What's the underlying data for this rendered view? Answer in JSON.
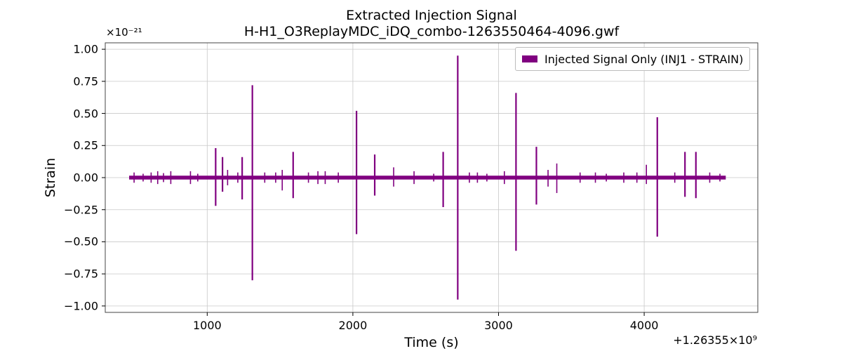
{
  "chart_data": {
    "type": "line",
    "title": "Extracted Injection Signal",
    "subtitle": "H-H1_O3ReplayMDC_iDQ_combo-1263550464-4096.gwf",
    "xlabel": "Time (s)",
    "ylabel": "Strain",
    "x_offset_label": "+1.26355×10⁹",
    "y_scale_label": "×10⁻²¹",
    "xlim": [
      300,
      4780
    ],
    "ylim": [
      -1.05,
      1.05
    ],
    "xticks": [
      1000,
      2000,
      3000,
      4000
    ],
    "xtick_labels": [
      "1000",
      "2000",
      "3000",
      "4000"
    ],
    "yticks": [
      1.0,
      0.75,
      0.5,
      0.25,
      0.0,
      -0.25,
      -0.5,
      -0.75,
      -1.0
    ],
    "ytick_labels": [
      "1.00",
      "0.75",
      "0.50",
      "0.25",
      "0.00",
      "−0.25",
      "−0.50",
      "−0.75",
      "−1.00"
    ],
    "grid": true,
    "legend_position": "upper right",
    "series": [
      {
        "name": "Injected Signal Only (INJ1 - STRAIN)",
        "color": "#800080",
        "x_range": [
          464,
          4560
        ],
        "baseline_amplitude": 0.015,
        "bursts": [
          {
            "t": 498,
            "amp": 0.04
          },
          {
            "t": 560,
            "amp": 0.03
          },
          {
            "t": 615,
            "amp": 0.04
          },
          {
            "t": 660,
            "amp": 0.05
          },
          {
            "t": 700,
            "amp": 0.035
          },
          {
            "t": 750,
            "amp": 0.05
          },
          {
            "t": 885,
            "amp": 0.05
          },
          {
            "t": 935,
            "amp": 0.03
          },
          {
            "t": 1058,
            "amp": 0.23,
            "neg": 0.22
          },
          {
            "t": 1105,
            "amp": 0.16,
            "neg": 0.11
          },
          {
            "t": 1140,
            "amp": 0.06
          },
          {
            "t": 1210,
            "amp": 0.04
          },
          {
            "t": 1240,
            "amp": 0.16,
            "neg": 0.17
          },
          {
            "t": 1310,
            "amp": 0.72,
            "neg": 0.8
          },
          {
            "t": 1395,
            "amp": 0.04
          },
          {
            "t": 1470,
            "amp": 0.04
          },
          {
            "t": 1515,
            "amp": 0.06,
            "neg": 0.1
          },
          {
            "t": 1590,
            "amp": 0.2,
            "neg": 0.16
          },
          {
            "t": 1695,
            "amp": 0.04
          },
          {
            "t": 1760,
            "amp": 0.05
          },
          {
            "t": 1810,
            "amp": 0.05
          },
          {
            "t": 1900,
            "amp": 0.04
          },
          {
            "t": 2025,
            "amp": 0.52,
            "neg": 0.44
          },
          {
            "t": 2150,
            "amp": 0.18,
            "neg": 0.14
          },
          {
            "t": 2280,
            "amp": 0.08,
            "neg": 0.07
          },
          {
            "t": 2420,
            "amp": 0.05
          },
          {
            "t": 2555,
            "amp": 0.03
          },
          {
            "t": 2620,
            "amp": 0.2,
            "neg": 0.23
          },
          {
            "t": 2720,
            "amp": 0.95,
            "neg": 0.95
          },
          {
            "t": 2800,
            "amp": 0.04
          },
          {
            "t": 2855,
            "amp": 0.04
          },
          {
            "t": 2920,
            "amp": 0.03
          },
          {
            "t": 3040,
            "amp": 0.05
          },
          {
            "t": 3120,
            "amp": 0.66,
            "neg": 0.57
          },
          {
            "t": 3260,
            "amp": 0.24,
            "neg": 0.21
          },
          {
            "t": 3340,
            "amp": 0.06,
            "neg": 0.07
          },
          {
            "t": 3400,
            "amp": 0.11,
            "neg": 0.12
          },
          {
            "t": 3560,
            "amp": 0.04
          },
          {
            "t": 3665,
            "amp": 0.04
          },
          {
            "t": 3740,
            "amp": 0.03
          },
          {
            "t": 3860,
            "amp": 0.04
          },
          {
            "t": 3950,
            "amp": 0.04
          },
          {
            "t": 4015,
            "amp": 0.1,
            "neg": 0.05
          },
          {
            "t": 4090,
            "amp": 0.47,
            "neg": 0.46
          },
          {
            "t": 4210,
            "amp": 0.04
          },
          {
            "t": 4280,
            "amp": 0.2,
            "neg": 0.15
          },
          {
            "t": 4355,
            "amp": 0.2,
            "neg": 0.16
          },
          {
            "t": 4450,
            "amp": 0.04
          },
          {
            "t": 4520,
            "amp": 0.03
          }
        ]
      }
    ]
  }
}
